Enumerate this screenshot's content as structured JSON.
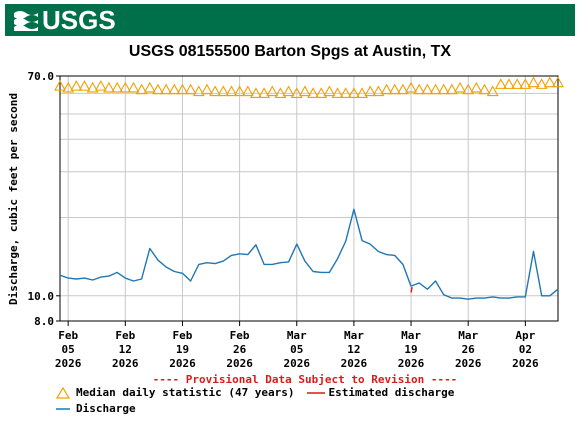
{
  "header": {
    "logo_text": "USGS"
  },
  "chart_data": {
    "type": "line",
    "title": "USGS 08155500 Barton Spgs at Austin, TX",
    "ylabel": "Discharge, cubic feet per second",
    "xlabel": "",
    "y_scale": "log",
    "ylim": [
      8.0,
      70.0
    ],
    "y_ticks": [
      "70.0",
      "10.0",
      "8.0"
    ],
    "x_tick_labels": [
      [
        "Feb",
        "05",
        "2026"
      ],
      [
        "Feb",
        "12",
        "2026"
      ],
      [
        "Feb",
        "19",
        "2026"
      ],
      [
        "Feb",
        "26",
        "2026"
      ],
      [
        "Mar",
        "05",
        "2026"
      ],
      [
        "Mar",
        "12",
        "2026"
      ],
      [
        "Mar",
        "19",
        "2026"
      ],
      [
        "Mar",
        "26",
        "2026"
      ],
      [
        "Apr",
        "02",
        "2026"
      ]
    ],
    "x_range": [
      "2026-02-04",
      "2026-04-06"
    ],
    "grid": true,
    "series": [
      {
        "name": "Median daily statistic (47 years)",
        "color": "#f0a000",
        "marker": "triangle",
        "points": [
          [
            "2026-02-04",
            64
          ],
          [
            "2026-02-05",
            63
          ],
          [
            "2026-02-06",
            64
          ],
          [
            "2026-02-07",
            64
          ],
          [
            "2026-02-08",
            63
          ],
          [
            "2026-02-09",
            64
          ],
          [
            "2026-02-10",
            63
          ],
          [
            "2026-02-11",
            63
          ],
          [
            "2026-02-12",
            63
          ],
          [
            "2026-02-13",
            63
          ],
          [
            "2026-02-14",
            62
          ],
          [
            "2026-02-15",
            63
          ],
          [
            "2026-02-16",
            62
          ],
          [
            "2026-02-17",
            62
          ],
          [
            "2026-02-18",
            62
          ],
          [
            "2026-02-19",
            62
          ],
          [
            "2026-02-20",
            62
          ],
          [
            "2026-02-21",
            61
          ],
          [
            "2026-02-22",
            62
          ],
          [
            "2026-02-23",
            61
          ],
          [
            "2026-02-24",
            61
          ],
          [
            "2026-02-25",
            61
          ],
          [
            "2026-02-26",
            61
          ],
          [
            "2026-02-27",
            61
          ],
          [
            "2026-02-28",
            60
          ],
          [
            "2026-03-01",
            60
          ],
          [
            "2026-03-02",
            61
          ],
          [
            "2026-03-03",
            60
          ],
          [
            "2026-03-04",
            61
          ],
          [
            "2026-03-05",
            60
          ],
          [
            "2026-03-06",
            61
          ],
          [
            "2026-03-07",
            60
          ],
          [
            "2026-03-08",
            60
          ],
          [
            "2026-03-09",
            61
          ],
          [
            "2026-03-10",
            60
          ],
          [
            "2026-03-11",
            60
          ],
          [
            "2026-03-12",
            60
          ],
          [
            "2026-03-13",
            60
          ],
          [
            "2026-03-14",
            61
          ],
          [
            "2026-03-15",
            61
          ],
          [
            "2026-03-16",
            62
          ],
          [
            "2026-03-17",
            62
          ],
          [
            "2026-03-18",
            62
          ],
          [
            "2026-03-19",
            63
          ],
          [
            "2026-03-20",
            62
          ],
          [
            "2026-03-21",
            62
          ],
          [
            "2026-03-22",
            62
          ],
          [
            "2026-03-23",
            62
          ],
          [
            "2026-03-24",
            62
          ],
          [
            "2026-03-25",
            63
          ],
          [
            "2026-03-26",
            62
          ],
          [
            "2026-03-27",
            63
          ],
          [
            "2026-03-28",
            62
          ],
          [
            "2026-03-29",
            61
          ],
          [
            "2026-03-30",
            65
          ],
          [
            "2026-03-31",
            65
          ],
          [
            "2026-04-01",
            65
          ],
          [
            "2026-04-02",
            65
          ],
          [
            "2026-04-03",
            66
          ],
          [
            "2026-04-04",
            65
          ],
          [
            "2026-04-05",
            66
          ],
          [
            "2026-04-06",
            66
          ]
        ]
      },
      {
        "name": "Discharge",
        "color": "#1f77b4",
        "points": [
          [
            "2026-02-04",
            12.0
          ],
          [
            "2026-02-05",
            11.7
          ],
          [
            "2026-02-06",
            11.6
          ],
          [
            "2026-02-07",
            11.7
          ],
          [
            "2026-02-08",
            11.5
          ],
          [
            "2026-02-09",
            11.8
          ],
          [
            "2026-02-10",
            11.9
          ],
          [
            "2026-02-11",
            12.3
          ],
          [
            "2026-02-12",
            11.7
          ],
          [
            "2026-02-13",
            11.4
          ],
          [
            "2026-02-14",
            11.6
          ],
          [
            "2026-02-15",
            15.2
          ],
          [
            "2026-02-16",
            13.7
          ],
          [
            "2026-02-17",
            12.9
          ],
          [
            "2026-02-18",
            12.4
          ],
          [
            "2026-02-19",
            12.2
          ],
          [
            "2026-02-20",
            11.4
          ],
          [
            "2026-02-21",
            13.2
          ],
          [
            "2026-02-22",
            13.4
          ],
          [
            "2026-02-23",
            13.3
          ],
          [
            "2026-02-24",
            13.6
          ],
          [
            "2026-02-25",
            14.3
          ],
          [
            "2026-02-26",
            14.5
          ],
          [
            "2026-02-27",
            14.4
          ],
          [
            "2026-02-28",
            15.7
          ],
          [
            "2026-03-01",
            13.2
          ],
          [
            "2026-03-02",
            13.2
          ],
          [
            "2026-03-03",
            13.4
          ],
          [
            "2026-03-04",
            13.5
          ],
          [
            "2026-03-05",
            15.8
          ],
          [
            "2026-03-06",
            13.6
          ],
          [
            "2026-03-07",
            12.4
          ],
          [
            "2026-03-08",
            12.3
          ],
          [
            "2026-03-09",
            12.3
          ],
          [
            "2026-03-10",
            13.9
          ],
          [
            "2026-03-11",
            16.2
          ],
          [
            "2026-03-12",
            21.5
          ],
          [
            "2026-03-13",
            16.3
          ],
          [
            "2026-03-14",
            15.8
          ],
          [
            "2026-03-15",
            14.8
          ],
          [
            "2026-03-16",
            14.4
          ],
          [
            "2026-03-17",
            14.3
          ],
          [
            "2026-03-18",
            13.2
          ],
          [
            "2026-03-19",
            10.9
          ],
          [
            "2026-03-20",
            11.2
          ],
          [
            "2026-03-21",
            10.6
          ],
          [
            "2026-03-22",
            11.4
          ],
          [
            "2026-03-23",
            10.1
          ],
          [
            "2026-03-24",
            9.8
          ],
          [
            "2026-03-25",
            9.8
          ],
          [
            "2026-03-26",
            9.7
          ],
          [
            "2026-03-27",
            9.8
          ],
          [
            "2026-03-28",
            9.8
          ],
          [
            "2026-03-29",
            9.9
          ],
          [
            "2026-03-30",
            9.8
          ],
          [
            "2026-03-31",
            9.8
          ],
          [
            "2026-04-01",
            9.9
          ],
          [
            "2026-04-02",
            9.9
          ],
          [
            "2026-04-03",
            14.8
          ],
          [
            "2026-04-04",
            10.0
          ],
          [
            "2026-04-05",
            10.0
          ],
          [
            "2026-04-06",
            10.6
          ]
        ]
      },
      {
        "name": "Estimated discharge",
        "color": "#d81b1b",
        "points": [
          [
            "2026-03-19",
            10.3
          ],
          [
            "2026-03-19",
            10.8
          ]
        ]
      }
    ],
    "annotation": "---- Provisional Data Subject to Revision ----",
    "legend_placement": "bottom"
  }
}
